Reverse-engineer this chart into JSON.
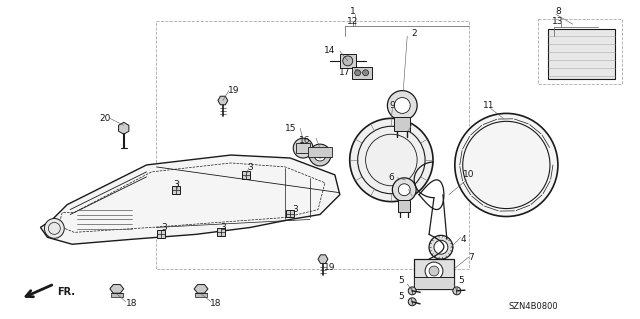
{
  "bg_color": "#ffffff",
  "fig_width": 6.4,
  "fig_height": 3.19,
  "watermark": "SZN4B0800",
  "dark": "#1a1a1a",
  "gray": "#888888"
}
